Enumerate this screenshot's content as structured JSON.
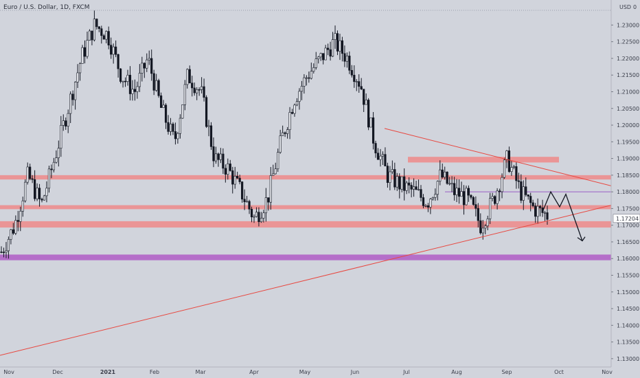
{
  "chart_data": {
    "type": "candlestick",
    "title": "Euro / U.S. Dollar, 1D, FXCM",
    "currency": "USD",
    "scale_marker": "0",
    "last_price": "1.17204",
    "ylim": [
      1.1275,
      1.2375
    ],
    "y_ticks": [
      "1.23000",
      "1.22500",
      "1.22000",
      "1.21500",
      "1.21000",
      "1.20500",
      "1.20000",
      "1.19500",
      "1.19000",
      "1.18500",
      "1.18000",
      "1.17500",
      "1.17000",
      "1.16500",
      "1.16000",
      "1.15500",
      "1.15000",
      "1.14500",
      "1.14000",
      "1.13500",
      "1.13000"
    ],
    "x_ticks": [
      "Nov",
      "Dec",
      "2021",
      "Feb",
      "Mar",
      "Apr",
      "May",
      "Jun",
      "Jul",
      "Aug",
      "Sep",
      "Oct",
      "Nov"
    ],
    "candles_anchor": [
      1.162,
      1.17,
      1.185,
      1.176,
      1.19,
      1.205,
      1.22,
      1.23,
      1.227,
      1.215,
      1.21,
      1.22,
      1.205,
      1.195,
      1.215,
      1.21,
      1.19,
      1.187,
      1.18,
      1.172,
      1.178,
      1.195,
      1.208,
      1.215,
      1.22,
      1.225,
      1.22,
      1.212,
      1.195,
      1.185,
      1.182,
      1.18,
      1.177,
      1.185,
      1.18,
      1.178,
      1.17,
      1.178,
      1.19,
      1.18,
      1.175,
      1.173
    ],
    "zones": [
      {
        "name": "resistance-zone-1190",
        "from": 1.1888,
        "to": 1.1905,
        "extent": "partial"
      },
      {
        "name": "zone-1184",
        "from": 1.1837,
        "to": 1.185,
        "extent": "full"
      },
      {
        "name": "zone-1175",
        "from": 1.1748,
        "to": 1.176,
        "extent": "full"
      },
      {
        "name": "zone-1170",
        "from": 1.1693,
        "to": 1.1712,
        "extent": "full"
      },
      {
        "name": "support-zone-1160",
        "from": 1.1595,
        "to": 1.1612,
        "extent": "full"
      }
    ],
    "horizontal_line": 1.18,
    "colors": {
      "background": "#d1d4dc",
      "up": "#e7e9ee",
      "down": "#131722",
      "zone": "#ef8a8a",
      "purple_zone": "#b05cc6",
      "trendline": "#e8473f",
      "projection": "#131722",
      "grid": "#9aa0ae"
    }
  }
}
